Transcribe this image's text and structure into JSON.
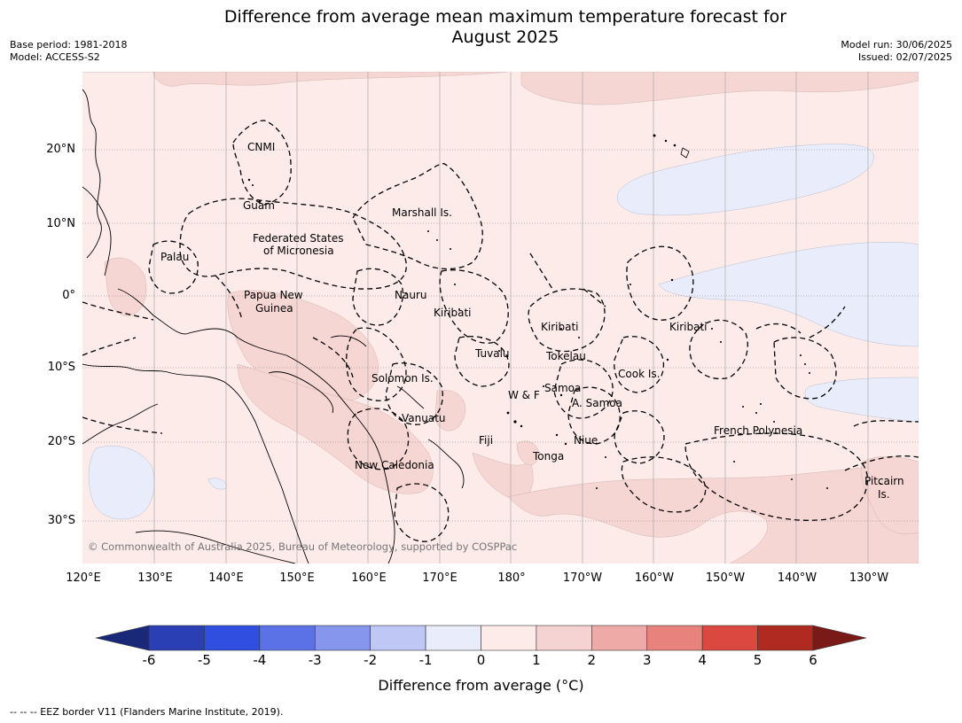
{
  "header": {
    "title_line1": "Difference from average mean maximum temperature forecast for",
    "title_line2": "August 2025",
    "base_period": "Base period: 1981-2018",
    "model": "Model: ACCESS-S2",
    "model_run": "Model run: 30/06/2025",
    "issued": "Issued: 02/07/2025"
  },
  "map": {
    "lat_labels": [
      "20°N",
      "10°N",
      "0°",
      "10°S",
      "20°S",
      "30°S"
    ],
    "lon_labels": [
      "120°E",
      "130°E",
      "140°E",
      "150°E",
      "160°E",
      "170°E",
      "180°",
      "170°W",
      "160°W",
      "150°W",
      "140°W",
      "130°W"
    ],
    "regions": {
      "cnmi": "CNMI",
      "guam": "Guam",
      "marshall": "Marshall Is.",
      "fsm_1": "Federated States",
      "fsm_2": "of Micronesia",
      "palau": "Palau",
      "png_1": "Papua New",
      "png_2": "Guinea",
      "nauru": "Nauru",
      "kiribati_w": "Kiribati",
      "kiribati_c": "Kiribati",
      "kiribati_e": "Kiribati",
      "tuvalu": "Tuvalu",
      "tokelau": "Tokelau",
      "cook": "Cook Is.",
      "solomon": "Solomon Is.",
      "wallis": "W & F",
      "samoa": "Samoa",
      "am_samoa": "A. Samoa",
      "vanuatu": "Vanuatu",
      "fiji": "Fiji",
      "niue": "Niue",
      "tonga": "Tonga",
      "new_caledonia": "New Caledonia",
      "french_polynesia": "French Polynesia",
      "pitcairn_1": "Pitcairn",
      "pitcairn_2": "Is."
    },
    "copyright": "© Commonwealth of Australia 2025, Bureau of Meteorology, supported by COSPPac",
    "colors": {
      "background": "#fcebe9",
      "warm_1_2": "#f6d6d3",
      "cool_0_neg1": "#e9edfb"
    }
  },
  "colorbar": {
    "ticks": [
      "-6",
      "-5",
      "-4",
      "-3",
      "-2",
      "-1",
      "0",
      "1",
      "2",
      "3",
      "4",
      "5",
      "6"
    ],
    "colors": [
      "#1a2878",
      "#2a3fb4",
      "#304ee0",
      "#5a72e6",
      "#8696ec",
      "#bfc8f4",
      "#e9edfb",
      "#fcebe9",
      "#f6d3d3",
      "#eeaaa6",
      "#e8827c",
      "#db4840",
      "#b02a22",
      "#7a1a16"
    ],
    "label": "Difference from average (°C)"
  },
  "footnote": "--  --  -- EEZ border V11 (Flanders Marine Institute, 2019)."
}
